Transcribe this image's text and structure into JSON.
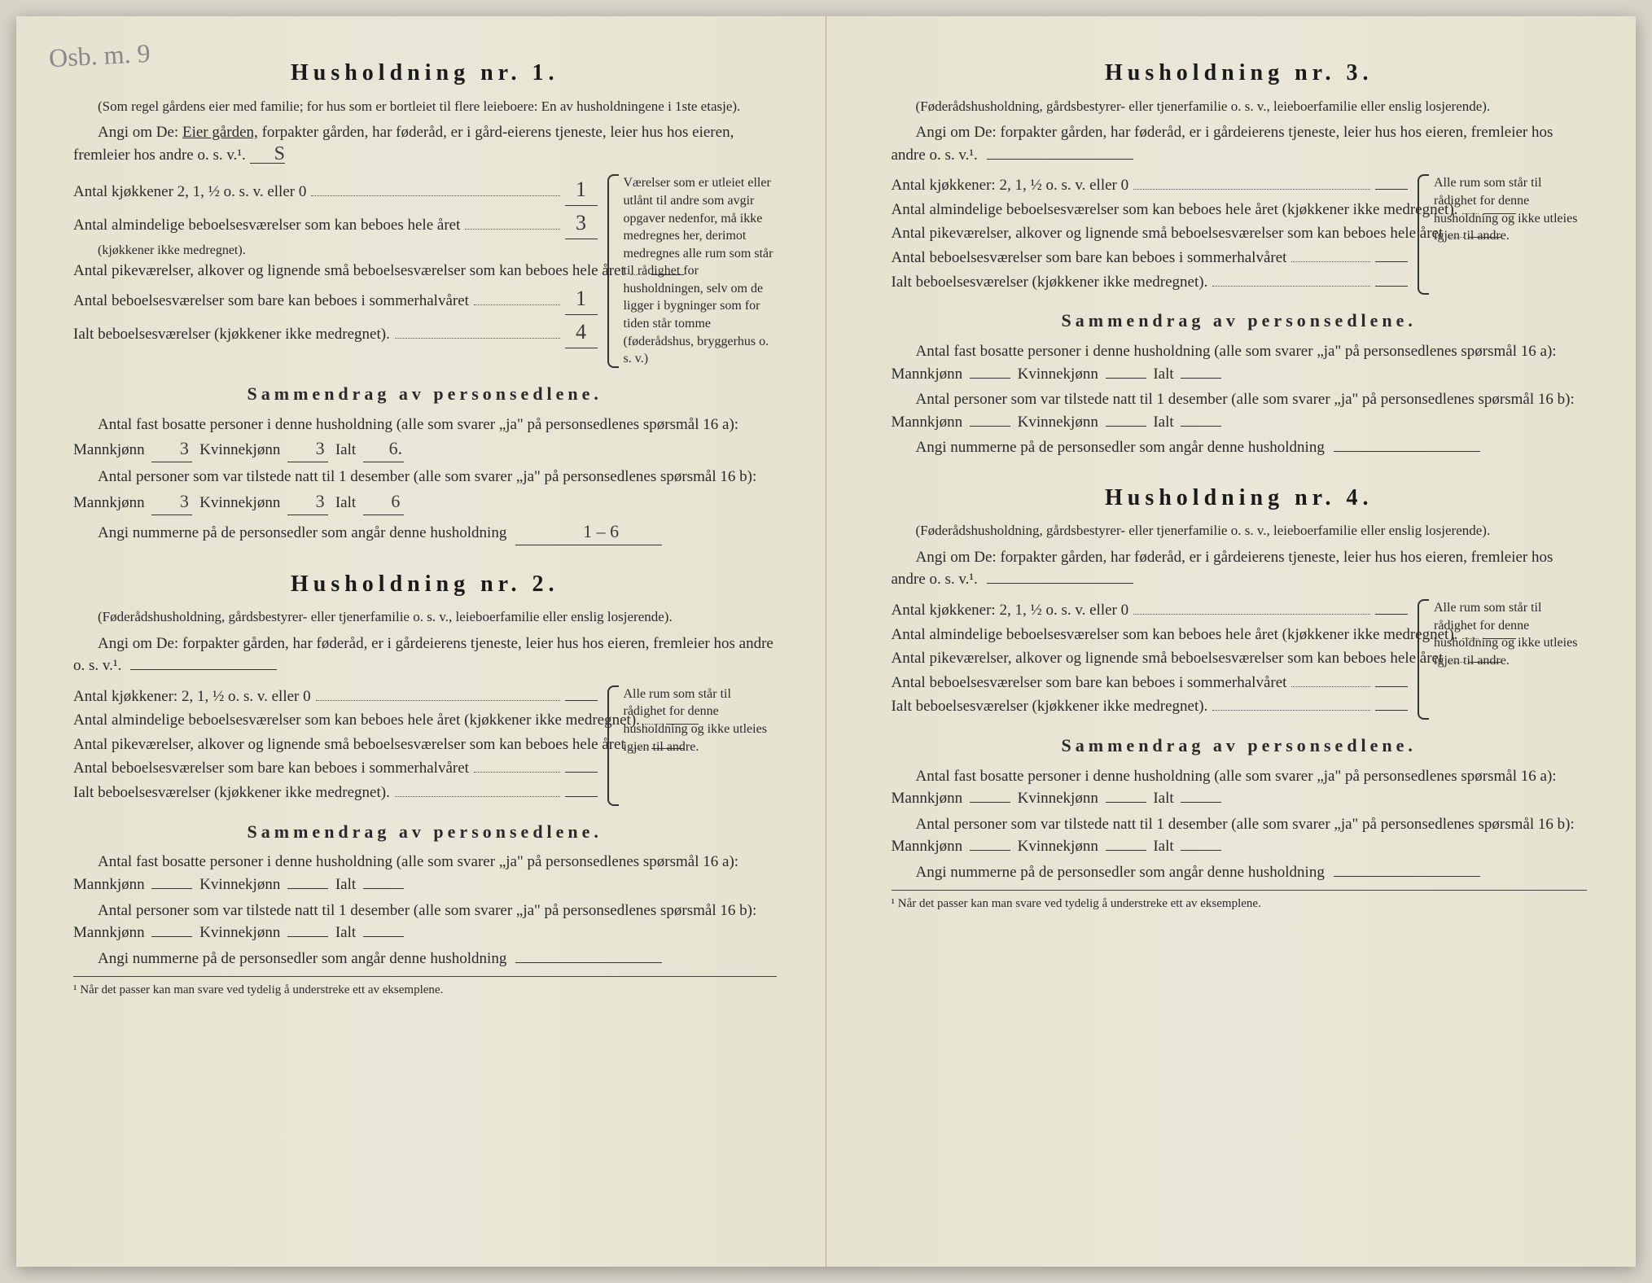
{
  "pencil_note": "Osb. m. 9",
  "hh1": {
    "title": "Husholdning nr. 1.",
    "subnote": "(Som regel gårdens eier med familie; for hus som er bortleiet til flere leieboere: En av husholdningene i 1ste etasje).",
    "angi_pre": "Angi om De: ",
    "angi_underlined": "Eier gården,",
    "angi_post": " forpakter gården, har føderåd, er i gård-eierens tjeneste, leier hus hos eieren, fremleier hos andre o. s. v.¹.",
    "angi_val": "S",
    "rows": {
      "kitchens_label": "Antal kjøkkener 2, 1, ½ o. s. v. eller 0",
      "kitchens_val": "1",
      "ordinary_label": "Antal almindelige beboelsesværelser som kan beboes hele året",
      "ordinary_note": "(kjøkkener ikke medregnet).",
      "ordinary_val": "3",
      "pike_label": "Antal pikeværelser, alkover og lignende små beboelsesværelser som kan beboes hele året",
      "pike_val": "",
      "summer_label": "Antal beboelsesværelser som bare kan beboes i sommerhalvåret",
      "summer_val": "1",
      "total_label": "Ialt beboelsesværelser (kjøkkener ikke medregnet).",
      "total_val": "4"
    },
    "sidenote": "Værelser som er utleiet eller utlånt til andre som avgir opgaver nedenfor, må ikke medregnes her, derimot medregnes alle rum som står til rådighet for husholdningen, selv om de ligger i bygninger som for tiden står tomme (føderådshus, bryggerhus o. s. v.)",
    "sammendrag_title": "Sammendrag av personsedlene.",
    "fast_line": "Antal fast bosatte personer i denne husholdning (alle som svarer „ja\" på personsedlenes spørsmål 16 a): Mannkjønn",
    "fast_m": "3",
    "fast_k_label": "Kvinnekjønn",
    "fast_k": "3",
    "fast_ialt_label": "Ialt",
    "fast_ialt": "6.",
    "tilstede_line": "Antal personer som var tilstede natt til 1 desember (alle som svarer „ja\" på personsedlenes spørsmål 16 b): Mannkjønn",
    "til_m": "3",
    "til_k": "3",
    "til_ialt": "6",
    "nummerne": "Angi nummerne på de personsedler som angår denne husholdning",
    "nummerne_val": "1 – 6"
  },
  "hh2": {
    "title": "Husholdning nr. 2.",
    "subnote": "(Føderådshusholdning, gårdsbestyrer- eller tjenerfamilie o. s. v., leieboerfamilie eller enslig losjerende).",
    "angi": "Angi om De: forpakter gården, har føderåd, er i gårdeierens tjeneste, leier hus hos eieren, fremleier hos andre o. s. v.¹.",
    "angi_val": "",
    "rows": {
      "kitchens_label": "Antal kjøkkener: 2, 1, ½ o. s. v. eller 0",
      "ordinary_label": "Antal almindelige beboelsesværelser som kan beboes hele året (kjøkkener ikke medregnet).",
      "pike_label": "Antal pikeværelser, alkover og lignende små beboelsesværelser som kan beboes hele året",
      "summer_label": "Antal beboelsesværelser som bare kan beboes i sommerhalvåret",
      "total_label": "Ialt beboelsesværelser (kjøkkener ikke medregnet)."
    },
    "sidenote": "Alle rum som står til rådighet for denne husholdning og ikke utleies igjen til andre.",
    "sammendrag_title": "Sammendrag av personsedlene.",
    "fast_line": "Antal fast bosatte personer i denne husholdning (alle som svarer „ja\" på personsedlenes spørsmål 16 a): Mannkjønn",
    "kvinne_label": "Kvinnekjønn",
    "ialt_label": "Ialt",
    "tilstede_line": "Antal personer som var tilstede natt til 1 desember (alle som svarer „ja\" på personsedlenes spørsmål 16 b): Mannkjønn",
    "nummerne": "Angi nummerne på de personsedler som angår denne husholdning"
  },
  "hh3": {
    "title": "Husholdning nr. 3.",
    "subnote": "(Føderådshusholdning, gårdsbestyrer- eller tjenerfamilie o. s. v., leieboerfamilie eller enslig losjerende).",
    "angi": "Angi om De: forpakter gården, har føderåd, er i gårdeierens tjeneste, leier hus hos eieren, fremleier hos andre o. s. v.¹.",
    "rows": {
      "kitchens_label": "Antal kjøkkener: 2, 1, ½ o. s. v. eller 0",
      "ordinary_label": "Antal almindelige beboelsesværelser som kan beboes hele året (kjøkkener ikke medregnet).",
      "pike_label": "Antal pikeværelser, alkover og lignende små beboelsesværelser som kan beboes hele året",
      "summer_label": "Antal beboelsesværelser som bare kan beboes i sommerhalvåret",
      "total_label": "Ialt beboelsesværelser (kjøkkener ikke medregnet)."
    },
    "sidenote": "Alle rum som står til rådighet for denne husholdning og ikke utleies igjen til andre.",
    "sammendrag_title": "Sammendrag av personsedlene.",
    "fast_line": "Antal fast bosatte personer i denne husholdning (alle som svarer „ja\" på personsedlenes spørsmål 16 a): Mannkjønn",
    "kvinne_label": "Kvinnekjønn",
    "ialt_label": "Ialt",
    "tilstede_line": "Antal personer som var tilstede natt til 1 desember (alle som svarer „ja\" på personsedlenes spørsmål 16 b): Mannkjønn",
    "nummerne": "Angi nummerne på de personsedler som angår denne husholdning"
  },
  "hh4": {
    "title": "Husholdning nr. 4.",
    "subnote": "(Føderådshusholdning, gårdsbestyrer- eller tjenerfamilie o. s. v., leieboerfamilie eller enslig losjerende).",
    "angi": "Angi om De: forpakter gården, har føderåd, er i gårdeierens tjeneste, leier hus hos eieren, fremleier hos andre o. s. v.¹.",
    "rows": {
      "kitchens_label": "Antal kjøkkener: 2, 1, ½ o. s. v. eller 0",
      "ordinary_label": "Antal almindelige beboelsesværelser som kan beboes hele året (kjøkkener ikke medregnet).",
      "pike_label": "Antal pikeværelser, alkover og lignende små beboelsesværelser som kan beboes hele året",
      "summer_label": "Antal beboelsesværelser som bare kan beboes i sommerhalvåret",
      "total_label": "Ialt beboelsesværelser (kjøkkener ikke medregnet)."
    },
    "sidenote": "Alle rum som står til rådighet for denne husholdning og ikke utleies igjen til andre.",
    "sammendrag_title": "Sammendrag av personsedlene.",
    "fast_line": "Antal fast bosatte personer i denne husholdning (alle som svarer „ja\" på personsedlenes spørsmål 16 a): Mannkjønn",
    "kvinne_label": "Kvinnekjønn",
    "ialt_label": "Ialt",
    "tilstede_line": "Antal personer som var tilstede natt til 1 desember (alle som svarer „ja\" på personsedlenes spørsmål 16 b): Mannkjønn",
    "nummerne": "Angi nummerne på de personsedler som angår denne husholdning"
  },
  "footnote": "¹ Når det passer kan man svare ved tydelig å understreke ett av eksemplene."
}
